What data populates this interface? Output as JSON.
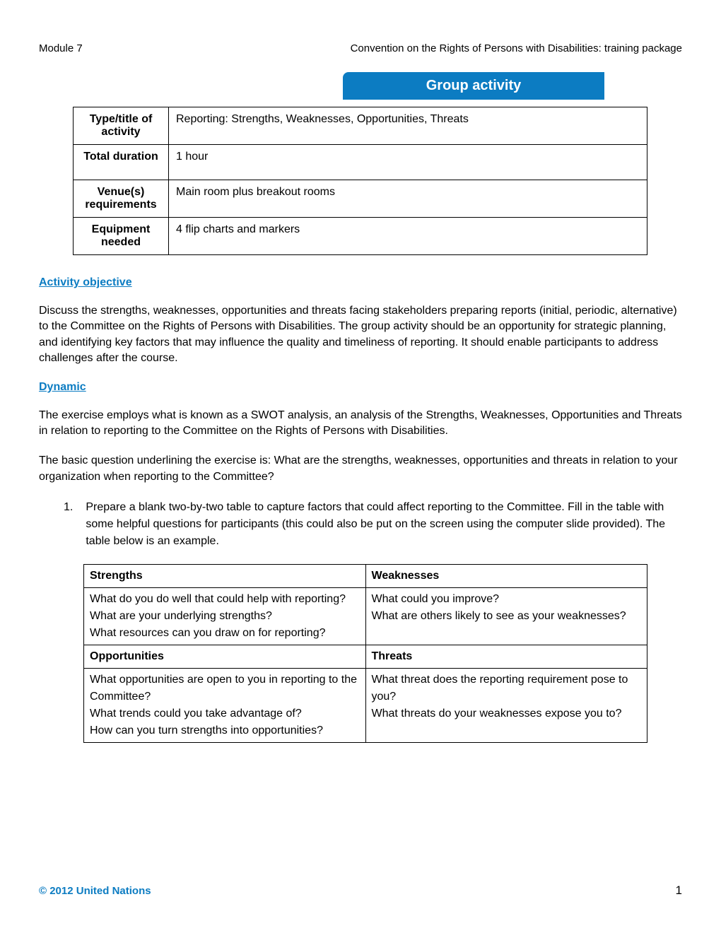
{
  "header": {
    "left": "Module 7",
    "right": "Convention on the Rights of Persons with Disabilities: training package"
  },
  "banner": "Group activity",
  "info_table": {
    "rows": [
      {
        "label": "Type/title of activity",
        "value": "Reporting: Strengths, Weaknesses, Opportunities, Threats"
      },
      {
        "label": "Total duration",
        "value": "1 hour"
      },
      {
        "label": "Venue(s) requirements",
        "value": "Main room plus breakout rooms"
      },
      {
        "label": "Equipment needed",
        "value": "4 flip charts and markers"
      }
    ]
  },
  "objective_heading": "Activity objective",
  "objective_text": "Discuss the strengths, weaknesses, opportunities and threats facing stakeholders preparing reports (initial, periodic, alternative) to the Committee on the Rights of Persons with Disabilities. The group activity should be an opportunity for strategic planning, and identifying key factors that may influence the quality and timeliness of reporting. It should enable participants to address challenges after the course.",
  "dynamic_heading": "Dynamic",
  "dynamic_para1": "The exercise employs what is known as a SWOT analysis, an analysis of the Strengths, Weaknesses, Opportunities and Threats in relation to reporting to the Committee on the Rights of Persons with Disabilities.",
  "dynamic_para2": "The basic question underlining the exercise is: What are the strengths, weaknesses, opportunities and threats in relation to your organization when reporting to the Committee?",
  "list_item_number": "1.",
  "list_item_text": "Prepare a blank two-by-two table to capture factors that could affect reporting to the Committee. Fill in the table with some helpful questions for participants (this could also be put on the screen using the computer slide provided). The table below is an example.",
  "swot": {
    "strengths_header": "Strengths",
    "weaknesses_header": "Weaknesses",
    "strengths_body": "What do you do well that could help with reporting?\nWhat are your underlying strengths?\nWhat resources can you draw on for reporting?",
    "weaknesses_body": "What could you improve?\nWhat are others likely to see as your weaknesses?",
    "opportunities_header": "Opportunities",
    "threats_header": "Threats",
    "opportunities_body": "What opportunities are open to you in reporting to the Committee?\nWhat trends could you take advantage of?\nHow can you turn strengths into opportunities?",
    "threats_body": "What threat does the reporting requirement pose to you?\nWhat threats do your weaknesses expose you to?"
  },
  "footer": {
    "copyright": "© 2012 United Nations",
    "page": "1"
  }
}
